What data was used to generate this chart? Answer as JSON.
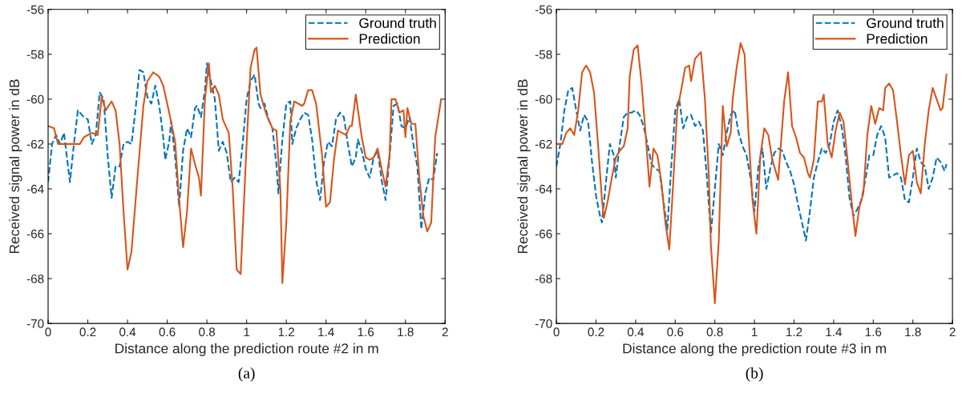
{
  "chart_data": [
    {
      "type": "line",
      "xlabel": "Distance along the prediction route #2 in m",
      "ylabel": "Received signal power in dB",
      "annotations": [
        "(a)"
      ],
      "xlim": [
        0,
        2
      ],
      "ylim": [
        -70,
        -56
      ],
      "xticks": [
        0,
        0.2,
        0.4,
        0.6,
        0.8,
        1,
        1.2,
        1.4,
        1.6,
        1.8,
        2
      ],
      "yticks": [
        -70,
        -68,
        -66,
        -64,
        -62,
        -60,
        -58,
        -56
      ],
      "grid": false,
      "legend": "top right",
      "series": [
        {
          "name": "Ground truth",
          "color": "#0072bd",
          "line_style": "dashed",
          "x": [
            0,
            0.02,
            0.04,
            0.06,
            0.08,
            0.11,
            0.13,
            0.15,
            0.18,
            0.2,
            0.22,
            0.24,
            0.26,
            0.28,
            0.3,
            0.32,
            0.34,
            0.36,
            0.38,
            0.4,
            0.42,
            0.44,
            0.46,
            0.48,
            0.5,
            0.52,
            0.54,
            0.56,
            0.58,
            0.59,
            0.61,
            0.62,
            0.64,
            0.66,
            0.68,
            0.7,
            0.72,
            0.74,
            0.75,
            0.77,
            0.79,
            0.8,
            0.82,
            0.84,
            0.86,
            0.88,
            0.9,
            0.92,
            0.94,
            0.96,
            0.98,
            1.0,
            1.02,
            1.04,
            1.06,
            1.07,
            1.09,
            1.11,
            1.13,
            1.15,
            1.16,
            1.18,
            1.2,
            1.22,
            1.23,
            1.25,
            1.27,
            1.29,
            1.31,
            1.33,
            1.35,
            1.37,
            1.39,
            1.41,
            1.43,
            1.45,
            1.47,
            1.49,
            1.51,
            1.53,
            1.55,
            1.56,
            1.58,
            1.6,
            1.62,
            1.64,
            1.66,
            1.68,
            1.7,
            1.72,
            1.74,
            1.76,
            1.78,
            1.8,
            1.82,
            1.84,
            1.86,
            1.88,
            1.9,
            1.92,
            1.94,
            1.96
          ],
          "values": [
            -63.7,
            -62.0,
            -61.6,
            -62.0,
            -61.5,
            -63.7,
            -62.0,
            -60.5,
            -60.8,
            -60.9,
            -62.0,
            -61.6,
            -59.7,
            -60.0,
            -62.5,
            -64.4,
            -63.0,
            -63.0,
            -62.0,
            -61.9,
            -62.0,
            -60.5,
            -58.7,
            -58.8,
            -59.9,
            -60.2,
            -59.4,
            -60.3,
            -61.7,
            -62.7,
            -61.9,
            -61.0,
            -62.6,
            -64.8,
            -62.3,
            -61.3,
            -61.7,
            -60.4,
            -60.3,
            -60.8,
            -59.6,
            -58.4,
            -59.2,
            -60.0,
            -62.3,
            -61.9,
            -62.4,
            -63.7,
            -63.5,
            -63.7,
            -62.0,
            -60.0,
            -59.2,
            -58.9,
            -60.2,
            -60.4,
            -60.2,
            -60.9,
            -61.3,
            -62.9,
            -64.2,
            -61.8,
            -60.2,
            -60.1,
            -62.0,
            -61.3,
            -60.9,
            -60.6,
            -60.7,
            -61.8,
            -63.6,
            -64.5,
            -62.8,
            -61.9,
            -62.1,
            -60.9,
            -60.6,
            -60.8,
            -62.0,
            -63.0,
            -62.6,
            -61.8,
            -62.3,
            -63.1,
            -63.5,
            -62.6,
            -62.3,
            -63.6,
            -64.5,
            -62.6,
            -60.3,
            -60.2,
            -61.2,
            -61.3,
            -60.8,
            -62.0,
            -63.0,
            -65.8,
            -64.2,
            -63.5,
            -63.6,
            -62.4
          ]
        },
        {
          "name": "Prediction",
          "color": "#d95319",
          "line_style": "solid",
          "x": [
            0,
            0.03,
            0.05,
            0.1,
            0.16,
            0.18,
            0.22,
            0.25,
            0.27,
            0.29,
            0.32,
            0.34,
            0.36,
            0.38,
            0.4,
            0.42,
            0.45,
            0.48,
            0.5,
            0.53,
            0.56,
            0.58,
            0.61,
            0.64,
            0.66,
            0.68,
            0.7,
            0.72,
            0.74,
            0.76,
            0.77,
            0.79,
            0.81,
            0.82,
            0.84,
            0.86,
            0.88,
            0.9,
            0.91,
            0.93,
            0.95,
            0.97,
            1.0,
            1.02,
            1.04,
            1.05,
            1.07,
            1.1,
            1.13,
            1.15,
            1.17,
            1.18,
            1.2,
            1.22,
            1.24,
            1.26,
            1.28,
            1.29,
            1.31,
            1.33,
            1.35,
            1.38,
            1.4,
            1.42,
            1.44,
            1.46,
            1.48,
            1.5,
            1.52,
            1.53,
            1.55,
            1.58,
            1.6,
            1.62,
            1.64,
            1.66,
            1.68,
            1.7,
            1.72,
            1.73,
            1.75,
            1.77,
            1.79,
            1.8,
            1.81,
            1.83,
            1.85,
            1.87,
            1.89,
            1.91,
            1.93,
            1.95,
            1.98
          ],
          "values": [
            -61.2,
            -61.3,
            -62.0,
            -62.0,
            -62.0,
            -61.7,
            -61.5,
            -61.6,
            -59.9,
            -60.5,
            -60.1,
            -60.5,
            -62.0,
            -65,
            -67.6,
            -66.8,
            -63.5,
            -60.3,
            -59.2,
            -58.8,
            -59.0,
            -59.4,
            -60.6,
            -61.9,
            -64.5,
            -66.6,
            -65,
            -62.2,
            -62.9,
            -63.5,
            -64.3,
            -60.0,
            -58.4,
            -59.7,
            -59.4,
            -59.8,
            -60.9,
            -61.3,
            -61.5,
            -64,
            -67.6,
            -67.8,
            -62,
            -58.6,
            -57.8,
            -57.7,
            -59.8,
            -60.7,
            -61.3,
            -61.4,
            -64,
            -68.2,
            -65.5,
            -61,
            -60.1,
            -60.2,
            -60.3,
            -60.2,
            -59.6,
            -59.6,
            -60.2,
            -62.5,
            -64.8,
            -64.6,
            -62.7,
            -61.4,
            -61.5,
            -61.6,
            -61.2,
            -61.2,
            -59.8,
            -61.7,
            -62.6,
            -62.7,
            -62.6,
            -62.2,
            -63.1,
            -63.9,
            -62.5,
            -60.0,
            -60.0,
            -60.6,
            -60.5,
            -61.7,
            -60.4,
            -61.1,
            -61.1,
            -63.5,
            -65.2,
            -65.9,
            -65.5,
            -61.7,
            -60.0
          ]
        }
      ]
    },
    {
      "type": "line",
      "xlabel": "Distance along the prediction route #3 in m",
      "ylabel": "Received signal power in dB",
      "annotations": [
        "(b)"
      ],
      "xlim": [
        0,
        2
      ],
      "ylim": [
        -70,
        -56
      ],
      "xticks": [
        0,
        0.2,
        0.4,
        0.6,
        0.8,
        1,
        1.2,
        1.4,
        1.6,
        1.8,
        2
      ],
      "yticks": [
        -70,
        -68,
        -66,
        -64,
        -62,
        -60,
        -58,
        -56
      ],
      "grid": false,
      "legend": "top right",
      "series": [
        {
          "name": "Ground truth",
          "color": "#0072bd",
          "line_style": "dashed",
          "x": [
            0,
            0.02,
            0.04,
            0.06,
            0.08,
            0.1,
            0.12,
            0.14,
            0.16,
            0.18,
            0.2,
            0.22,
            0.23,
            0.25,
            0.27,
            0.29,
            0.3,
            0.32,
            0.34,
            0.36,
            0.38,
            0.4,
            0.42,
            0.44,
            0.46,
            0.48,
            0.5,
            0.52,
            0.54,
            0.56,
            0.58,
            0.6,
            0.62,
            0.64,
            0.66,
            0.68,
            0.7,
            0.72,
            0.74,
            0.76,
            0.78,
            0.8,
            0.82,
            0.84,
            0.86,
            0.88,
            0.9,
            0.92,
            0.94,
            0.96,
            0.98,
            1.0,
            1.02,
            1.04,
            1.06,
            1.08,
            1.1,
            1.12,
            1.14,
            1.16,
            1.18,
            1.2,
            1.22,
            1.24,
            1.26,
            1.28,
            1.3,
            1.32,
            1.34,
            1.36,
            1.38,
            1.4,
            1.42,
            1.44,
            1.46,
            1.48,
            1.5,
            1.52,
            1.54,
            1.56,
            1.58,
            1.6,
            1.62,
            1.64,
            1.66,
            1.68,
            1.7,
            1.72,
            1.74,
            1.76,
            1.78,
            1.8,
            1.82,
            1.84,
            1.86,
            1.88,
            1.9,
            1.92,
            1.94,
            1.96,
            1.97
          ],
          "values": [
            -63.0,
            -62.0,
            -60.5,
            -59.6,
            -59.5,
            -60.5,
            -61.4,
            -60.7,
            -61.0,
            -62.8,
            -64.3,
            -65.2,
            -65.5,
            -63.7,
            -62.0,
            -62.5,
            -63.5,
            -62.0,
            -60.8,
            -60.6,
            -60.6,
            -60.5,
            -60.7,
            -61.2,
            -62.0,
            -62.9,
            -63.1,
            -63.2,
            -64.5,
            -65.8,
            -63.0,
            -60.5,
            -60.0,
            -61.3,
            -60.8,
            -60.7,
            -61.2,
            -61.0,
            -61.4,
            -63.5,
            -66.0,
            -64.0,
            -62.0,
            -62.5,
            -61.5,
            -60.7,
            -60.5,
            -61.5,
            -62.1,
            -62.5,
            -63.5,
            -65.0,
            -63.0,
            -62.2,
            -64.0,
            -63.1,
            -62.4,
            -62.2,
            -62.3,
            -62.8,
            -63.2,
            -63.8,
            -64.7,
            -65.5,
            -66.3,
            -65.0,
            -63.5,
            -62.8,
            -62.2,
            -62.4,
            -62.0,
            -61.0,
            -60.5,
            -61.2,
            -62.5,
            -64.4,
            -65.2,
            -64.9,
            -64.5,
            -63.6,
            -62.5,
            -62.5,
            -61.6,
            -61.2,
            -61.7,
            -63.5,
            -63.4,
            -63.3,
            -63.5,
            -64.5,
            -64.6,
            -63.5,
            -62.2,
            -62.8,
            -63.0,
            -64.0,
            -63.5,
            -62.6,
            -62.8,
            -63.2,
            -62.9
          ]
        },
        {
          "name": "Prediction",
          "color": "#d95319",
          "line_style": "solid",
          "x": [
            0,
            0.03,
            0.05,
            0.07,
            0.09,
            0.11,
            0.13,
            0.15,
            0.17,
            0.19,
            0.21,
            0.23,
            0.24,
            0.26,
            0.28,
            0.3,
            0.32,
            0.34,
            0.36,
            0.37,
            0.39,
            0.41,
            0.43,
            0.45,
            0.47,
            0.49,
            0.51,
            0.53,
            0.55,
            0.57,
            0.59,
            0.61,
            0.63,
            0.65,
            0.67,
            0.68,
            0.7,
            0.73,
            0.75,
            0.77,
            0.78,
            0.8,
            0.82,
            0.84,
            0.86,
            0.88,
            0.89,
            0.91,
            0.93,
            0.95,
            0.97,
            0.99,
            1.01,
            1.03,
            1.05,
            1.07,
            1.09,
            1.11,
            1.12,
            1.15,
            1.17,
            1.19,
            1.21,
            1.23,
            1.25,
            1.27,
            1.28,
            1.3,
            1.32,
            1.34,
            1.35,
            1.37,
            1.39,
            1.41,
            1.43,
            1.45,
            1.47,
            1.49,
            1.51,
            1.53,
            1.55,
            1.57,
            1.59,
            1.61,
            1.63,
            1.65,
            1.66,
            1.68,
            1.7,
            1.72,
            1.74,
            1.76,
            1.78,
            1.8,
            1.82,
            1.84,
            1.86,
            1.88,
            1.9,
            1.92,
            1.94,
            1.95,
            1.97
          ],
          "values": [
            -62.0,
            -62.0,
            -61.5,
            -61.3,
            -61.6,
            -60.5,
            -58.8,
            -58.5,
            -58.8,
            -59.7,
            -62,
            -64.5,
            -65.3,
            -64.5,
            -63.5,
            -62.6,
            -62.3,
            -62.1,
            -61.3,
            -59,
            -57.8,
            -57.6,
            -59.3,
            -61.5,
            -63.9,
            -62.2,
            -62.5,
            -63.7,
            -65.5,
            -66.7,
            -63.7,
            -60.5,
            -59.6,
            -58.6,
            -58.5,
            -59.2,
            -58.2,
            -57.9,
            -60.0,
            -63.5,
            -66.5,
            -69.1,
            -66.3,
            -60.3,
            -62.1,
            -61.5,
            -60.0,
            -58.6,
            -57.5,
            -58.0,
            -61.5,
            -64.5,
            -66.0,
            -62.5,
            -61.3,
            -61.6,
            -62.7,
            -63.3,
            -63.6,
            -60.1,
            -58.8,
            -61.2,
            -61.7,
            -62.4,
            -62.6,
            -63.3,
            -63.5,
            -62.7,
            -60.1,
            -60.1,
            -59.8,
            -62.0,
            -62.6,
            -61.4,
            -60.6,
            -61.0,
            -62.7,
            -64.5,
            -66.1,
            -64.8,
            -64.2,
            -61.6,
            -60.3,
            -61.1,
            -60.4,
            -60.5,
            -59.5,
            -59.3,
            -59.6,
            -61.0,
            -62.5,
            -63.8,
            -62.5,
            -62.3,
            -63.7,
            -64.2,
            -62.0,
            -60.5,
            -59.5,
            -60.0,
            -60.5,
            -60.4,
            -58.9
          ]
        }
      ]
    }
  ]
}
